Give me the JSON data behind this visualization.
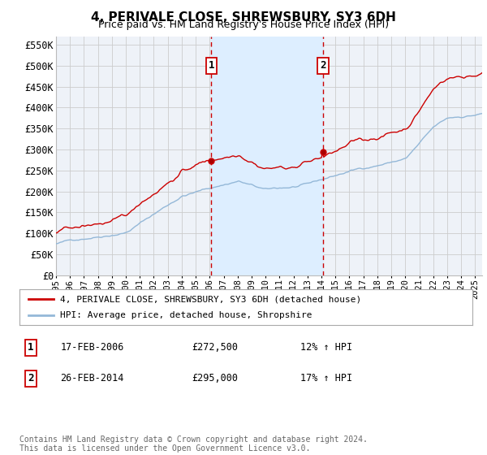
{
  "title": "4, PERIVALE CLOSE, SHREWSBURY, SY3 6DH",
  "subtitle": "Price paid vs. HM Land Registry's House Price Index (HPI)",
  "ylim": [
    0,
    570000
  ],
  "yticks": [
    0,
    50000,
    100000,
    150000,
    200000,
    250000,
    300000,
    350000,
    400000,
    450000,
    500000,
    550000
  ],
  "ytick_labels": [
    "£0",
    "£50K",
    "£100K",
    "£150K",
    "£200K",
    "£250K",
    "£300K",
    "£350K",
    "£400K",
    "£450K",
    "£500K",
    "£550K"
  ],
  "hpi_color": "#94b8d8",
  "price_color": "#cc0000",
  "sale1_x": 2006.12,
  "sale1_price": 272500,
  "sale2_x": 2014.12,
  "sale2_price": 295000,
  "shade_color": "#ddeeff",
  "grid_color": "#cccccc",
  "plot_bg": "#eef2f8",
  "bg_color": "#ffffff",
  "legend_price_label": "4, PERIVALE CLOSE, SHREWSBURY, SY3 6DH (detached house)",
  "legend_hpi_label": "HPI: Average price, detached house, Shropshire",
  "note1_num": "1",
  "note1_date": "17-FEB-2006",
  "note1_price": "£272,500",
  "note1_hpi": "12% ↑ HPI",
  "note2_num": "2",
  "note2_date": "26-FEB-2014",
  "note2_price": "£295,000",
  "note2_hpi": "17% ↑ HPI",
  "footer": "Contains HM Land Registry data © Crown copyright and database right 2024.\nThis data is licensed under the Open Government Licence v3.0."
}
